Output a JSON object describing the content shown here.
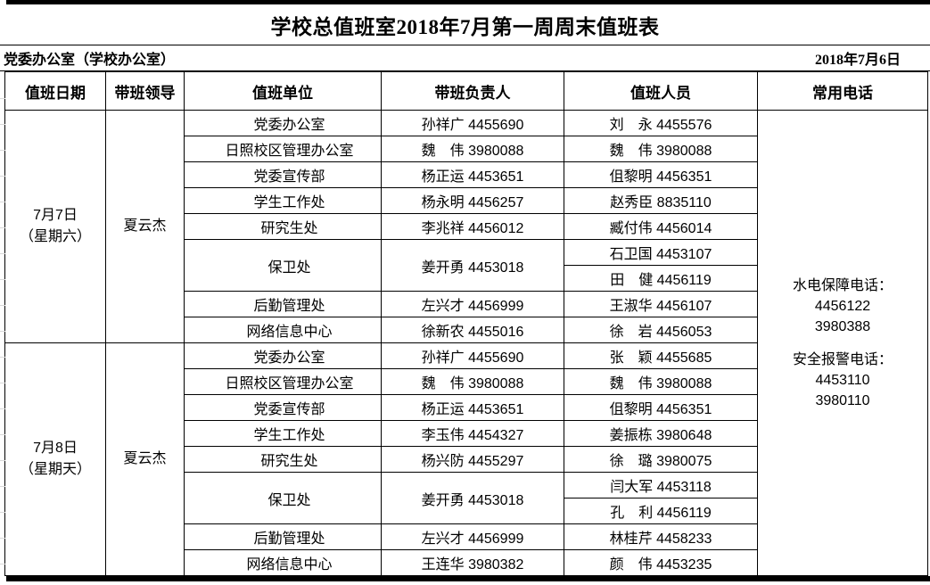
{
  "title": "学校总值班室2018年7月第一周周末值班表",
  "office": "党委办公室（学校办公室）",
  "issue_date": "2018年7月6日",
  "columns": {
    "date": "值班日期",
    "leader": "带班领导",
    "unit": "值班单位",
    "manager": "带班负责人",
    "staff": "值班人员",
    "phones": "常用电话"
  },
  "sections": [
    {
      "date": "7月7日",
      "weekday": "（星期六）",
      "leader": "夏云杰",
      "rows": [
        {
          "unit": "党委办公室",
          "manager": "孙祥广 4455690",
          "staff": "刘　永 4455576"
        },
        {
          "unit": "日照校区管理办公室",
          "manager": "魏　伟 3980088",
          "staff": "魏　伟 3980088"
        },
        {
          "unit": "党委宣传部",
          "manager": "杨正运 4453651",
          "staff": "伹黎明 4456351"
        },
        {
          "unit": "学生工作处",
          "manager": "杨永明 4456257",
          "staff": "赵秀臣 8835110"
        },
        {
          "unit": "研究生处",
          "manager": "李兆祥 4456012",
          "staff": "臧付伟 4456014"
        },
        {
          "unit": "保卫处",
          "manager": "姜开勇 4453018",
          "staff": "石卫国 4453107",
          "staff2": "田　健 4456119"
        },
        {
          "unit": "后勤管理处",
          "manager": "左兴才 4456999",
          "staff": "王淑华 4456107"
        },
        {
          "unit": "网络信息中心",
          "manager": "徐新农 4455016",
          "staff": "徐　岩 4456053"
        }
      ]
    },
    {
      "date": "7月8日",
      "weekday": "（星期天）",
      "leader": "夏云杰",
      "rows": [
        {
          "unit": "党委办公室",
          "manager": "孙祥广 4455690",
          "staff": "张　颖 4455685"
        },
        {
          "unit": "日照校区管理办公室",
          "manager": "魏　伟 3980088",
          "staff": "魏　伟 3980088"
        },
        {
          "unit": "党委宣传部",
          "manager": "杨正运 4453651",
          "staff": "伹黎明 4456351"
        },
        {
          "unit": "学生工作处",
          "manager": "李玉伟 4454327",
          "staff": "姜振栋 3980648"
        },
        {
          "unit": "研究生处",
          "manager": "杨兴防 4455297",
          "staff": "徐　璐 3980075"
        },
        {
          "unit": "保卫处",
          "manager": "姜开勇 4453018",
          "staff": "闫大军 4453118",
          "staff2": "孔　利 4456119"
        },
        {
          "unit": "后勤管理处",
          "manager": "左兴才 4456999",
          "staff": "林桂芹 4458233"
        },
        {
          "unit": "网络信息中心",
          "manager": "王连华 3980382",
          "staff": "颜　伟 4453235"
        }
      ]
    }
  ],
  "phones": {
    "utility_label": "水电保障电话：",
    "utility_numbers": [
      "4456122",
      "3980388"
    ],
    "security_label": "安全报警电话：",
    "security_numbers": [
      "4453110",
      "3980110"
    ]
  }
}
